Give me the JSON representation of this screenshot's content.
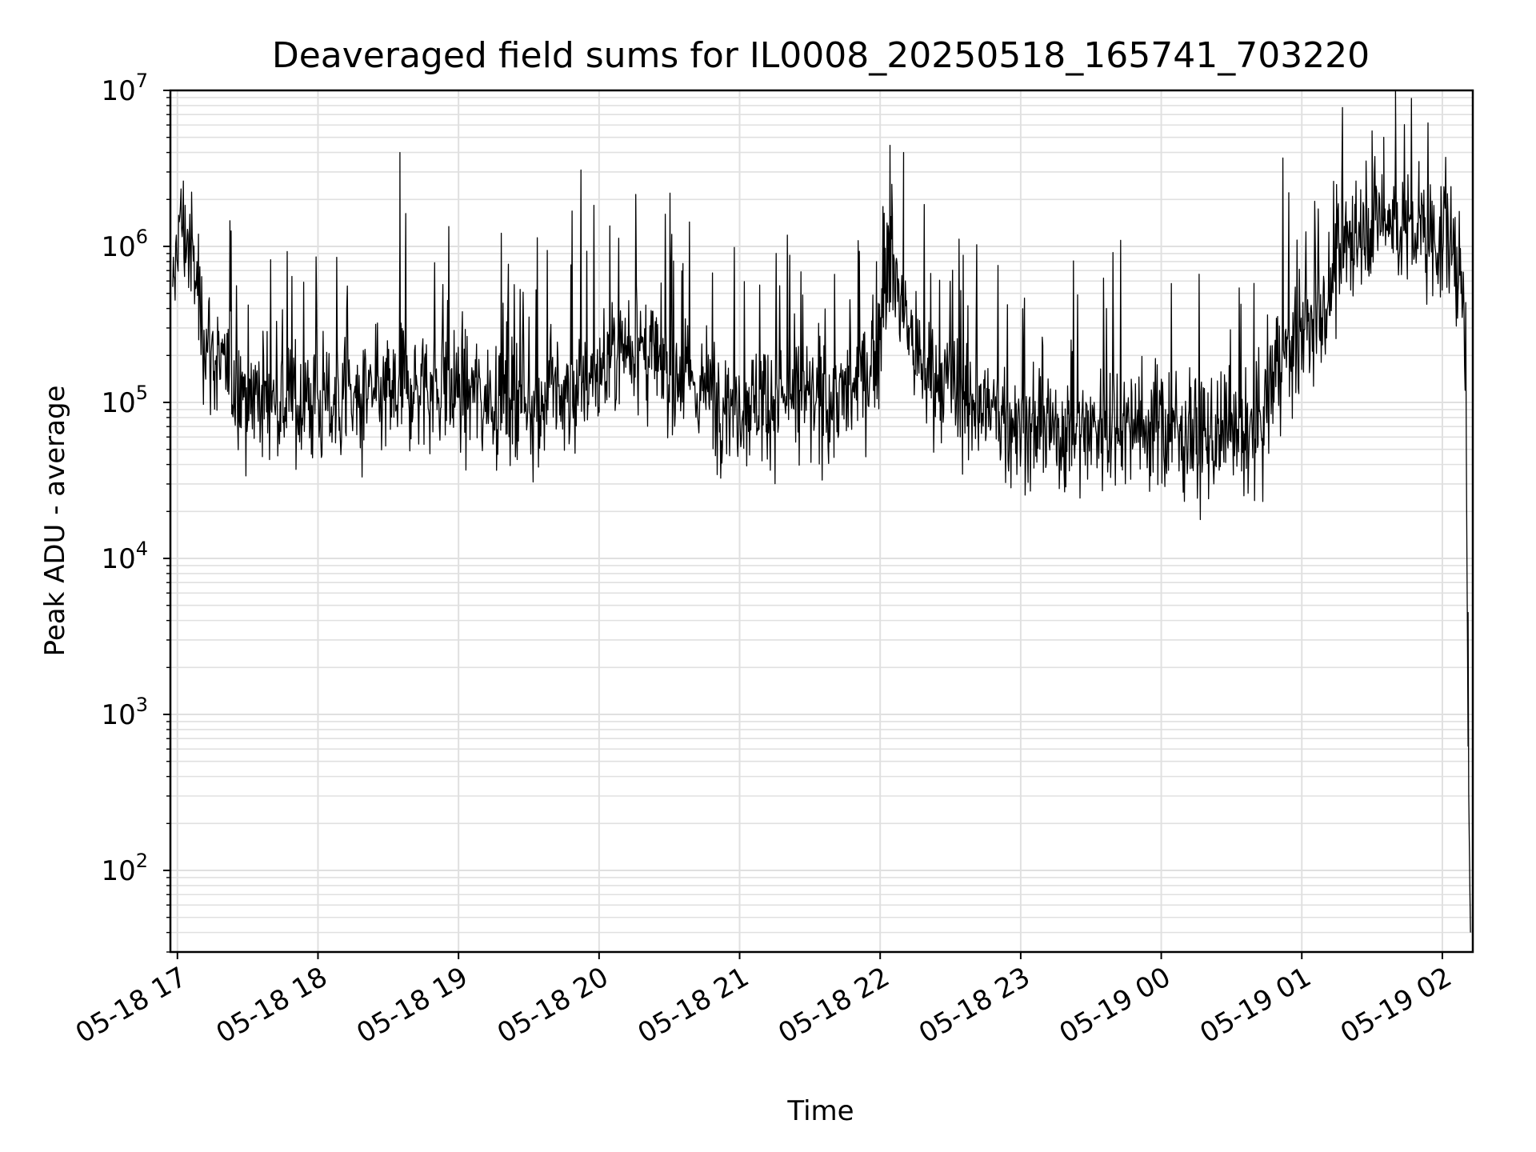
{
  "chart_data": {
    "type": "line",
    "title": "Deaveraged field sums for IL0008_20250518_165741_703220",
    "xlabel": "Time",
    "ylabel": "Peak ADU - average",
    "yscale": "log",
    "ylim": [
      30,
      10000000
    ],
    "xlim": [
      "2025-05-18 16:57",
      "2025-05-19 02:13"
    ],
    "x_ticks": [
      {
        "t": "2025-05-18 17:00",
        "label": "05-18 17"
      },
      {
        "t": "2025-05-18 18:00",
        "label": "05-18 18"
      },
      {
        "t": "2025-05-18 19:00",
        "label": "05-18 19"
      },
      {
        "t": "2025-05-18 20:00",
        "label": "05-18 20"
      },
      {
        "t": "2025-05-18 21:00",
        "label": "05-18 21"
      },
      {
        "t": "2025-05-18 22:00",
        "label": "05-18 22"
      },
      {
        "t": "2025-05-18 23:00",
        "label": "05-18 23"
      },
      {
        "t": "2025-05-19 00:00",
        "label": "05-19 00"
      },
      {
        "t": "2025-05-19 01:00",
        "label": "05-19 01"
      },
      {
        "t": "2025-05-19 02:00",
        "label": "05-19 02"
      }
    ],
    "y_ticks": [
      {
        "v": 100,
        "base": "10",
        "exp": "2"
      },
      {
        "v": 1000,
        "base": "10",
        "exp": "3"
      },
      {
        "v": 10000,
        "base": "10",
        "exp": "4"
      },
      {
        "v": 100000,
        "base": "10",
        "exp": "5"
      },
      {
        "v": 1000000,
        "base": "10",
        "exp": "6"
      },
      {
        "v": 10000000,
        "base": "10",
        "exp": "7"
      }
    ],
    "grid": true,
    "line_color": "#000000",
    "grid_color": "#e0e0e0",
    "series": [
      {
        "x": [
          "2025-05-18 16:58",
          "2025-05-18 16:59",
          "2025-05-18 17:00",
          "2025-05-18 17:02",
          "2025-05-18 17:05",
          "2025-05-18 17:08",
          "2025-05-18 17:10",
          "2025-05-18 17:15",
          "2025-05-18 17:20",
          "2025-05-18 17:30",
          "2025-05-18 17:45",
          "2025-05-18 18:00",
          "2025-05-18 18:15",
          "2025-05-18 18:30",
          "2025-05-18 18:35",
          "2025-05-18 18:45",
          "2025-05-18 19:00",
          "2025-05-18 19:15",
          "2025-05-18 19:30",
          "2025-05-18 19:45",
          "2025-05-18 20:00",
          "2025-05-18 20:10",
          "2025-05-18 20:20",
          "2025-05-18 20:30",
          "2025-05-18 20:45",
          "2025-05-18 21:00",
          "2025-05-18 21:15",
          "2025-05-18 21:30",
          "2025-05-18 21:45",
          "2025-05-18 21:55",
          "2025-05-18 22:00",
          "2025-05-18 22:05",
          "2025-05-18 22:10",
          "2025-05-18 22:15",
          "2025-05-18 22:20",
          "2025-05-18 22:30",
          "2025-05-18 22:45",
          "2025-05-18 23:00",
          "2025-05-18 23:15",
          "2025-05-18 23:30",
          "2025-05-18 23:45",
          "2025-05-19 00:00",
          "2025-05-19 00:15",
          "2025-05-19 00:30",
          "2025-05-19 00:40",
          "2025-05-19 00:45",
          "2025-05-19 00:50",
          "2025-05-19 01:00",
          "2025-05-19 01:10",
          "2025-05-19 01:20",
          "2025-05-19 01:30",
          "2025-05-19 01:40",
          "2025-05-19 01:50",
          "2025-05-19 02:00",
          "2025-05-19 02:05",
          "2025-05-19 02:08",
          "2025-05-19 02:10",
          "2025-05-19 02:11",
          "2025-05-19 02:12"
        ],
        "y": [
          300000,
          700000,
          1300000,
          1400000,
          1000000,
          600000,
          350000,
          200000,
          150000,
          120000,
          100000,
          100000,
          100000,
          110000,
          120000,
          130000,
          120000,
          110000,
          100000,
          110000,
          150000,
          250000,
          200000,
          150000,
          120000,
          100000,
          110000,
          100000,
          110000,
          150000,
          300000,
          800000,
          400000,
          200000,
          150000,
          120000,
          90000,
          70000,
          65000,
          70000,
          75000,
          70000,
          60000,
          55000,
          55000,
          100000,
          200000,
          250000,
          400000,
          1200000,
          1600000,
          1400000,
          1200000,
          1100000,
          900000,
          600000,
          200000,
          600,
          40
        ],
        "jitter_dex": 0.28,
        "samples": 2200
      }
    ],
    "notable_spikes": [
      {
        "t": "2025-05-18 18:35",
        "v": 4000000
      },
      {
        "t": "2025-05-18 22:10",
        "v": 4000000
      },
      {
        "t": "2025-05-18 22:05",
        "v": 2500000
      },
      {
        "t": "2025-05-19 01:40",
        "v": 6000000
      },
      {
        "t": "2025-05-19 01:35",
        "v": 5000000
      },
      {
        "t": "2025-05-19 01:30",
        "v": 5500000
      },
      {
        "t": "2025-05-19 01:50",
        "v": 3500000
      },
      {
        "t": "2025-05-18 17:09",
        "v": 1200000
      },
      {
        "t": "2025-05-19 02:11",
        "v": 4500
      }
    ]
  }
}
